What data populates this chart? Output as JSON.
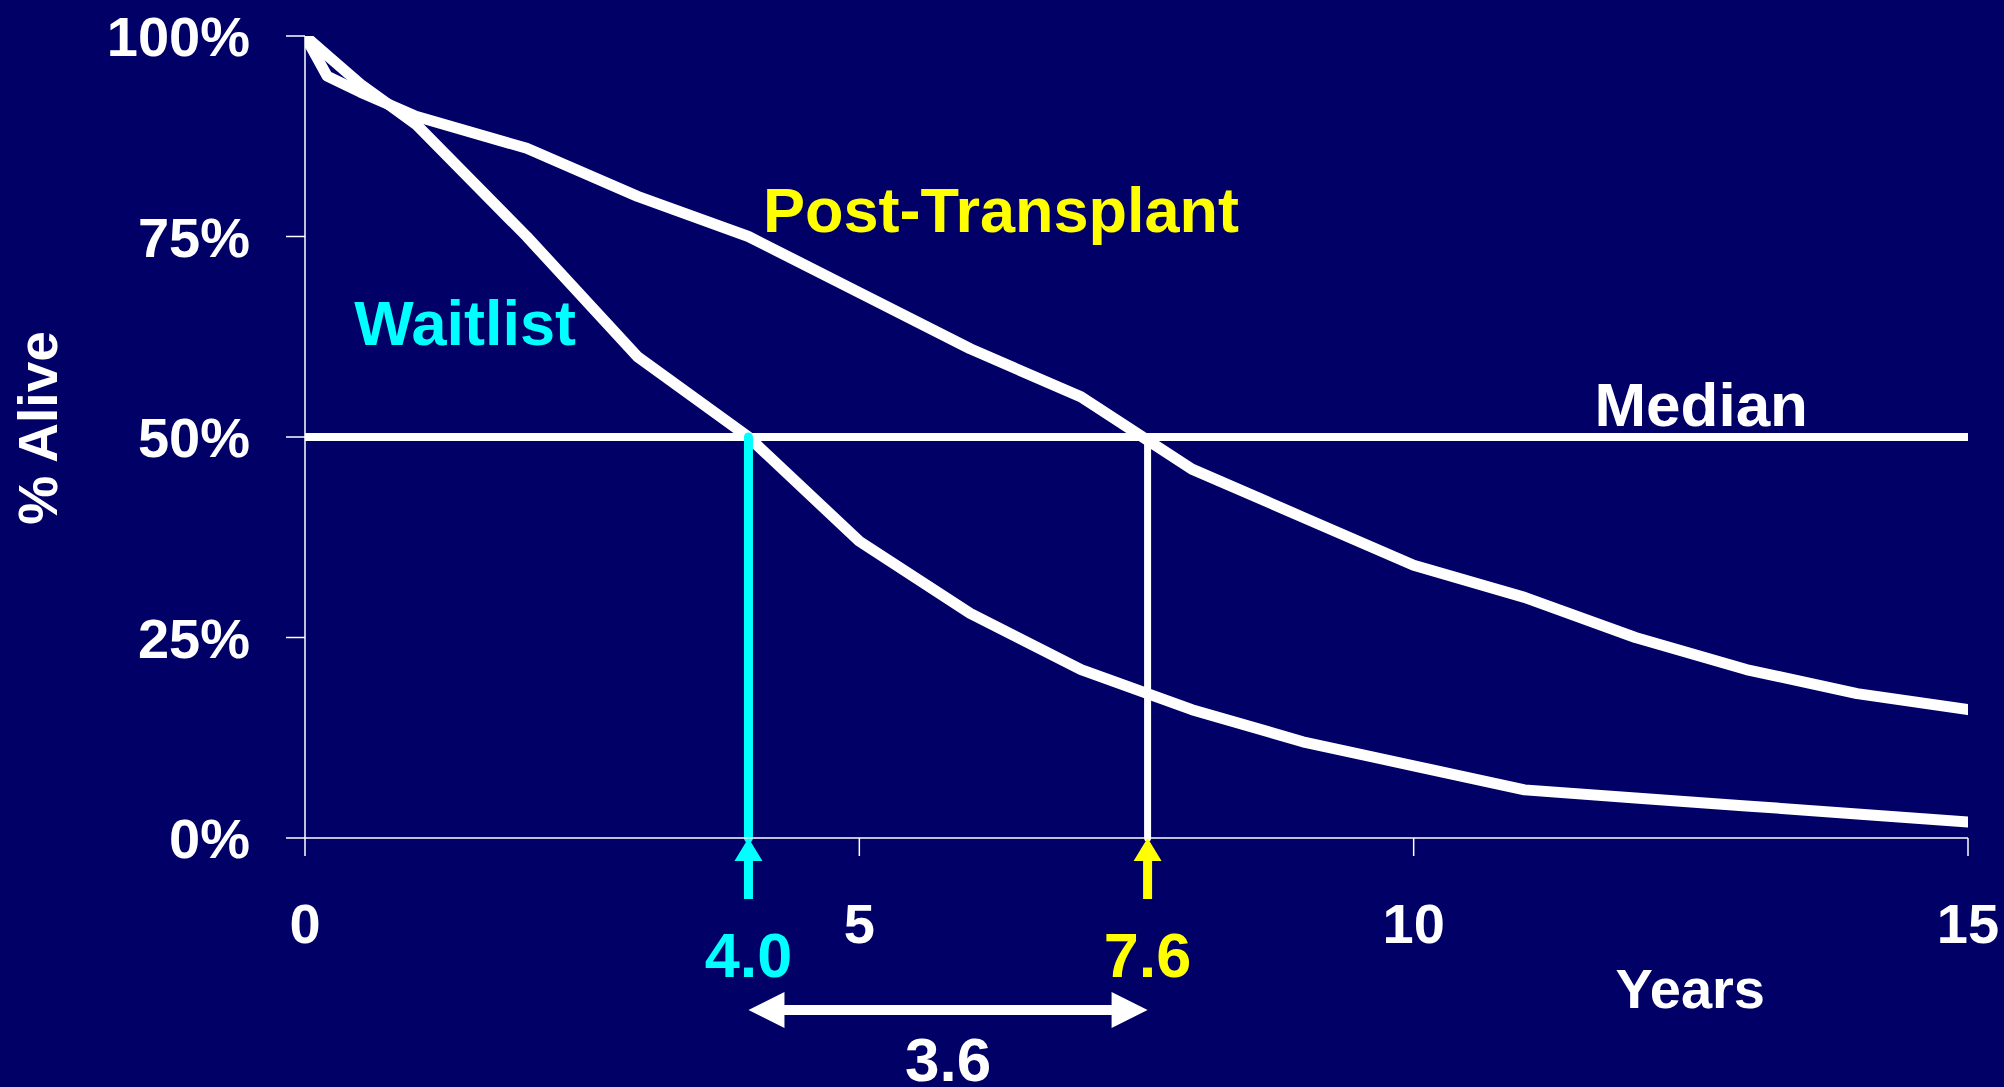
{
  "chart_data": {
    "type": "line",
    "xlabel": "Years",
    "ylabel": "% Alive",
    "xlim": [
      0,
      15
    ],
    "xticks": [
      0,
      5,
      10,
      15
    ],
    "ylim": [
      0,
      100
    ],
    "yticks": [
      {
        "value": 0,
        "label": "0%"
      },
      {
        "value": 25,
        "label": "25%"
      },
      {
        "value": 50,
        "label": "50%"
      },
      {
        "value": 75,
        "label": "75%"
      },
      {
        "value": 100,
        "label": "100%"
      }
    ],
    "line_style": "solid",
    "series": [
      {
        "name": "Waitlist",
        "color": "#ffffff",
        "x": [
          0,
          0.25,
          0.5,
          1,
          2,
          3,
          4,
          5,
          6,
          7,
          8,
          9,
          10,
          11,
          12,
          13,
          14,
          15
        ],
        "values": [
          100,
          97,
          94,
          89,
          75,
          60,
          50,
          37,
          28,
          21,
          16,
          12,
          9,
          6,
          5,
          4,
          3,
          2
        ]
      },
      {
        "name": "Post-Transplant",
        "color": "#ffffff",
        "x": [
          0,
          0.2,
          0.5,
          1,
          2,
          3,
          4,
          5,
          6,
          7,
          8,
          9,
          10,
          11,
          12,
          13,
          14,
          15
        ],
        "values": [
          100,
          95,
          93,
          90,
          86,
          80,
          75,
          68,
          61,
          55,
          46,
          40,
          34,
          30,
          25,
          21,
          18,
          16
        ]
      }
    ],
    "ref_lines": [
      {
        "axis": "y",
        "value": 50,
        "label": "Median",
        "color": "#ffffff"
      },
      {
        "axis": "x",
        "value": 4.0,
        "label": "4.0",
        "color": "#00ffff"
      },
      {
        "axis": "x",
        "value": 7.6,
        "label": "7.6",
        "color": "#ffffff"
      }
    ],
    "annotations": [
      "3.6"
    ]
  }
}
